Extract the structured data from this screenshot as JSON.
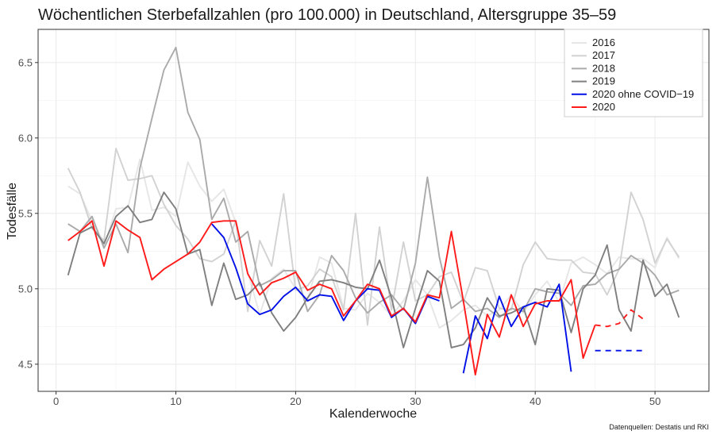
{
  "chart_data": {
    "type": "line",
    "title": "Wöchentlichen Sterbefallzahlen (pro 100.000) in Deutschland, Altersgruppe 35–59",
    "xlabel": "Kalenderwoche",
    "ylabel": "Todesfälle",
    "caption": "Datenquellen: Destatis und RKI",
    "xlim": [
      -1.5,
      54.5
    ],
    "ylim": [
      4.32,
      6.72
    ],
    "x_ticks": [
      0,
      10,
      20,
      30,
      40,
      50
    ],
    "y_ticks": [
      4.5,
      5.0,
      5.5,
      6.0,
      6.5
    ],
    "y_tick_labels": [
      "4.5",
      "5.0",
      "5.5",
      "6.0",
      "6.5"
    ],
    "grid": true,
    "legend_position": "top-right",
    "series": [
      {
        "name": "2016",
        "color": "#e6e6e6",
        "style": "solid",
        "x_start": 1,
        "values": [
          5.68,
          5.63,
          5.45,
          5.28,
          5.53,
          5.54,
          5.86,
          5.52,
          5.54,
          5.48,
          5.84,
          5.68,
          5.58,
          5.66,
          5.44,
          5.11,
          4.83,
          5.07,
          5.13,
          5.0,
          4.93,
          5.21,
          5.17,
          4.87,
          4.86,
          4.97,
          4.91,
          4.82,
          4.92,
          5.06,
          4.96,
          4.74,
          4.79,
          4.86,
          4.89,
          4.82,
          4.86,
          4.96,
          4.84,
          4.96,
          5.05,
          4.91,
          5.17,
          5.21,
          5.16,
          5.1,
          5.21,
          5.2,
          5.2,
          5.14,
          5.34,
          5.2
        ]
      },
      {
        "name": "2017",
        "color": "#d2d2d2",
        "style": "solid",
        "x_start": 1,
        "values": [
          5.8,
          5.64,
          5.4,
          5.32,
          5.93,
          5.72,
          5.73,
          5.75,
          5.56,
          5.42,
          5.33,
          5.2,
          5.18,
          5.23,
          5.45,
          4.85,
          5.32,
          5.15,
          5.63,
          4.99,
          5.02,
          5.13,
          5.08,
          4.86,
          5.5,
          4.76,
          5.41,
          4.86,
          5.31,
          4.92,
          4.96,
          5.08,
          5.11,
          4.91,
          5.14,
          5.12,
          4.87,
          4.86,
          5.16,
          5.31,
          5.2,
          5.19,
          5.19,
          5.11,
          5.1,
          4.96,
          5.13,
          5.64,
          5.46,
          5.17,
          5.33,
          5.21
        ]
      },
      {
        "name": "2018",
        "color": "#aaaaaa",
        "style": "solid",
        "x_start": 1,
        "values": [
          5.43,
          5.38,
          5.48,
          5.27,
          5.43,
          5.24,
          5.8,
          6.13,
          6.45,
          6.6,
          6.17,
          5.99,
          5.46,
          5.6,
          5.31,
          5.38,
          5.02,
          5.06,
          5.12,
          5.12,
          4.85,
          4.96,
          5.22,
          5.12,
          4.94,
          4.84,
          4.91,
          4.96,
          4.86,
          5.17,
          5.74,
          5.21,
          4.87,
          4.93,
          4.85,
          4.87,
          4.81,
          4.87,
          4.85,
          5.0,
          4.98,
          4.97,
          4.89,
          5.02,
          5.03,
          5.1,
          5.13,
          5.22,
          5.17,
          5.09,
          4.96,
          4.99
        ]
      },
      {
        "name": "2019",
        "color": "#7f7f7f",
        "style": "solid",
        "x_start": 1,
        "values": [
          5.09,
          5.37,
          5.41,
          5.3,
          5.48,
          5.55,
          5.44,
          5.46,
          5.64,
          5.53,
          5.23,
          5.26,
          4.89,
          5.17,
          4.93,
          4.96,
          5.04,
          4.84,
          4.72,
          4.81,
          4.94,
          5.05,
          5.06,
          5.04,
          5.01,
          5.0,
          5.19,
          4.94,
          4.61,
          4.87,
          5.12,
          5.05,
          4.61,
          4.63,
          4.74,
          4.94,
          4.82,
          4.84,
          4.88,
          4.63,
          5.0,
          4.99,
          4.71,
          5.0,
          5.09,
          5.29,
          4.86,
          4.72,
          5.19,
          4.95,
          5.03,
          4.81
        ]
      },
      {
        "name": "2020 ohne COVID−19",
        "color": "#0010e6",
        "style": "solid",
        "x_start": 13,
        "values": [
          5.43,
          5.34,
          5.14,
          4.9,
          4.83,
          4.86,
          4.95,
          5.01,
          4.92,
          4.96,
          4.95,
          4.79,
          4.92,
          5.0,
          4.99,
          4.81,
          4.87,
          4.77,
          4.95,
          4.92,
          null,
          4.44,
          4.82,
          4.67,
          4.95,
          4.75,
          4.88,
          4.91,
          4.88,
          5.03,
          4.45
        ]
      },
      {
        "name": "2020 ohne COVID−19 (gestrichelt)",
        "color": "#0010e6",
        "style": "dashed",
        "x_start": 45,
        "values": [
          4.59,
          4.59,
          4.59,
          4.59,
          4.59
        ]
      },
      {
        "name": "2020",
        "color": "#ff1a1a",
        "style": "solid",
        "x_start": 1,
        "values": [
          5.32,
          5.38,
          5.45,
          5.15,
          5.45,
          5.39,
          5.34,
          5.06,
          5.13,
          5.18,
          5.23,
          5.31,
          5.44,
          5.45,
          5.45,
          5.1,
          4.96,
          5.04,
          5.07,
          5.11,
          4.99,
          5.03,
          5.0,
          4.82,
          4.92,
          5.03,
          5.0,
          4.82,
          4.87,
          4.78,
          4.96,
          4.94,
          5.38,
          4.92,
          4.43,
          4.83,
          4.68,
          4.96,
          4.75,
          4.9,
          4.92,
          4.92,
          5.06,
          4.54,
          4.76
        ]
      },
      {
        "name": "2020 (gestrichelt)",
        "color": "#ff1a1a",
        "style": "dashed",
        "x_start": 45,
        "values": [
          4.76,
          4.75,
          4.77,
          4.86,
          4.8
        ]
      }
    ],
    "legend": [
      {
        "label": "2016",
        "color": "#e6e6e6"
      },
      {
        "label": "2017",
        "color": "#d2d2d2"
      },
      {
        "label": "2018",
        "color": "#aaaaaa"
      },
      {
        "label": "2019",
        "color": "#7f7f7f"
      },
      {
        "label": "2020 ohne COVID−19",
        "color": "#0010e6"
      },
      {
        "label": "2020",
        "color": "#ff1a1a"
      }
    ]
  }
}
